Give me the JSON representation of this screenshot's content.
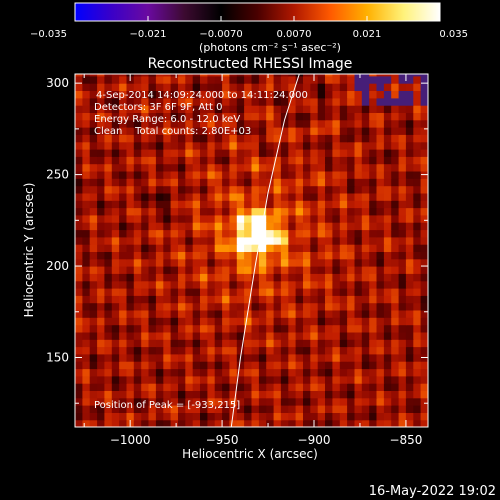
{
  "chart_data": {
    "type": "heatmap",
    "title": "Reconstructed RHESSI Image",
    "xlabel": "Heliocentric X (arcsec)",
    "ylabel": "Heliocentric Y (arcsec)",
    "xlim": [
      -1030,
      -838
    ],
    "ylim": [
      112,
      305
    ],
    "xticks": [
      -1000,
      -950,
      -900,
      -850
    ],
    "yticks": [
      150,
      200,
      250,
      300
    ],
    "xtick_labels": [
      "−1000",
      "−950",
      "−900",
      "−850"
    ],
    "ytick_labels": [
      "150",
      "200",
      "250",
      "300"
    ],
    "colorbar": {
      "range": [
        -0.035,
        0.035
      ],
      "ticks": [
        -0.035,
        -0.021,
        -0.007,
        0.007,
        0.021,
        0.035
      ],
      "tick_labels": [
        "−0.035",
        "−0.021",
        "−0.0070",
        "0.0070",
        "0.021",
        "0.035"
      ],
      "units": "(photons cm⁻² s⁻¹ asec⁻²)",
      "colors": [
        "#0000ff",
        "#3a00c8",
        "#6a0aa0",
        "#3c0a30",
        "#000000",
        "#4a0000",
        "#b01800",
        "#ff5a00",
        "#ffb000",
        "#fff27a",
        "#ffffff"
      ]
    },
    "annotations": [
      "4-Sep-2014 14:09:24.000 to 14:11:24.000",
      "Detectors: 3F 6F 9F, Att 0",
      "Energy Range: 6.0 - 12.0 keV",
      "Clean    Total counts: 2.80E+03"
    ],
    "peak_label": "Position of Peak = [-933,215]",
    "peak": {
      "x": -933,
      "y": 215,
      "value": 0.035
    },
    "limb_points": [
      [
        -945,
        112
      ],
      [
        -940,
        150
      ],
      [
        -932,
        200
      ],
      [
        -925,
        240
      ],
      [
        -916,
        280
      ],
      [
        -908,
        305
      ]
    ],
    "grid": false
  },
  "footer": {
    "timestamp": "16-May-2022 19:02"
  }
}
